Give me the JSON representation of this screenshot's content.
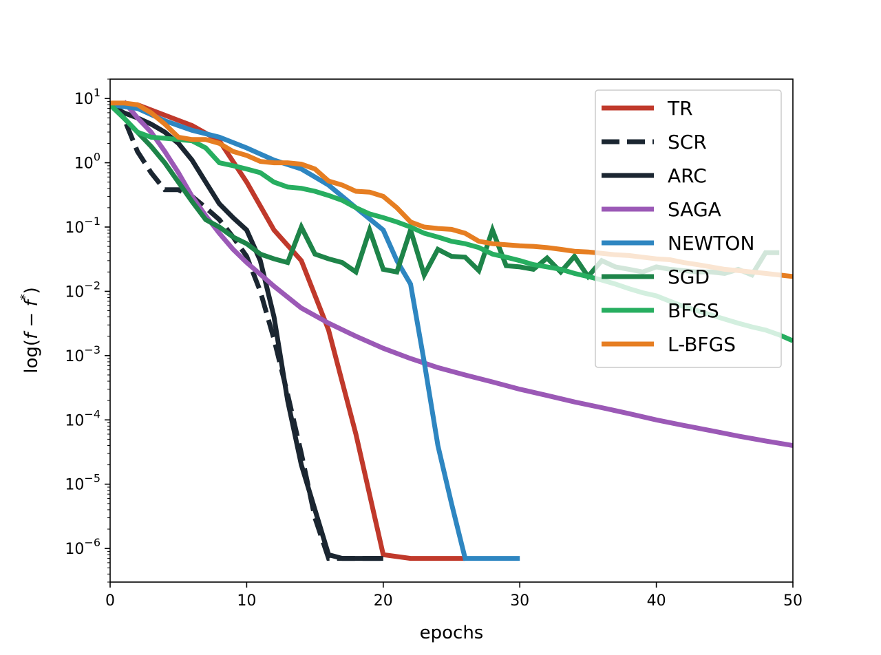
{
  "chart_data": {
    "type": "line",
    "title": "",
    "xlabel": "epochs",
    "ylabel": "log(f − f*)",
    "xlim": [
      0,
      50
    ],
    "ylim": [
      3e-07,
      20
    ],
    "yscale": "log",
    "xticks": [
      "0",
      "10",
      "20",
      "30",
      "40",
      "50"
    ],
    "yticks": [
      {
        "base": "10",
        "exp": "1",
        "value": 10
      },
      {
        "base": "10",
        "exp": "0",
        "value": 1
      },
      {
        "base": "10",
        "exp": "−1",
        "value": 0.1
      },
      {
        "base": "10",
        "exp": "−2",
        "value": 0.01
      },
      {
        "base": "10",
        "exp": "−3",
        "value": 0.001
      },
      {
        "base": "10",
        "exp": "−4",
        "value": 0.0001
      },
      {
        "base": "10",
        "exp": "−5",
        "value": 1e-05
      },
      {
        "base": "10",
        "exp": "−6",
        "value": 1e-06
      }
    ],
    "grid": false,
    "legend_position": "top-right",
    "series": [
      {
        "name": "TR",
        "color": "#c0392b",
        "dash": "solid",
        "x": [
          0,
          2,
          4,
          6,
          8,
          10,
          12,
          14,
          16,
          18,
          20,
          22,
          24,
          26
        ],
        "y": [
          8,
          8,
          5.5,
          3.8,
          2.2,
          0.5,
          0.09,
          0.03,
          0.0025,
          6e-05,
          8e-07,
          7e-07,
          7e-07,
          7e-07
        ]
      },
      {
        "name": "SCR",
        "color": "#1b2631",
        "dash": "dashed",
        "x": [
          0,
          1,
          2,
          3,
          4,
          5,
          6,
          7,
          8,
          9,
          10,
          11,
          12,
          13,
          14,
          15,
          16,
          17,
          18,
          20
        ],
        "y": [
          8,
          5,
          1.5,
          0.7,
          0.38,
          0.38,
          0.3,
          0.2,
          0.13,
          0.07,
          0.035,
          0.01,
          0.0018,
          0.00025,
          3e-05,
          3e-06,
          7e-07,
          7e-07,
          7e-07,
          7e-07
        ]
      },
      {
        "name": "ARC",
        "color": "#1b2631",
        "dash": "solid",
        "x": [
          0,
          1,
          2,
          3,
          4,
          5,
          6,
          7,
          8,
          9,
          10,
          11,
          12,
          13,
          14,
          15,
          16,
          17,
          18,
          19,
          20
        ],
        "y": [
          8,
          6,
          5,
          4,
          3,
          2,
          1.1,
          0.5,
          0.23,
          0.14,
          0.09,
          0.03,
          0.004,
          0.0002,
          2e-05,
          4e-06,
          8e-07,
          7e-07,
          7e-07,
          7e-07,
          7e-07
        ]
      },
      {
        "name": "SAGA",
        "color": "#9b59b6",
        "dash": "solid",
        "x": [
          1,
          2,
          3,
          4,
          5,
          6,
          7,
          8,
          9,
          10,
          12,
          14,
          16,
          18,
          20,
          22,
          24,
          26,
          28,
          30,
          32,
          34,
          36,
          38,
          40,
          42,
          44,
          46,
          48,
          50
        ],
        "y": [
          9,
          5,
          3,
          1.5,
          0.7,
          0.3,
          0.15,
          0.08,
          0.045,
          0.028,
          0.012,
          0.0055,
          0.0032,
          0.002,
          0.0013,
          0.0009,
          0.00065,
          0.0005,
          0.00039,
          0.0003,
          0.00024,
          0.00019,
          0.000155,
          0.000125,
          0.0001,
          8.2e-05,
          6.8e-05,
          5.6e-05,
          4.7e-05,
          4e-05
        ]
      },
      {
        "name": "NEWTON",
        "color": "#2e86c1",
        "dash": "solid",
        "x": [
          0,
          2,
          4,
          6,
          8,
          10,
          12,
          14,
          16,
          18,
          20,
          21,
          22,
          23,
          24,
          25,
          26,
          27,
          28,
          29,
          30
        ],
        "y": [
          8,
          7,
          4.5,
          3.2,
          2.5,
          1.7,
          1.1,
          0.8,
          0.45,
          0.2,
          0.09,
          0.03,
          0.013,
          0.0008,
          4e-05,
          5e-06,
          7e-07,
          7e-07,
          7e-07,
          7e-07,
          7e-07
        ]
      },
      {
        "name": "SGD",
        "color": "#1e8449",
        "dash": "solid",
        "x": [
          0,
          1,
          2,
          3,
          4,
          5,
          6,
          7,
          8,
          9,
          10,
          11,
          12,
          13,
          14,
          15,
          16,
          17,
          18,
          19,
          20,
          21,
          22,
          23,
          24,
          25,
          26,
          27,
          28,
          29,
          30,
          31,
          32,
          33,
          34,
          35,
          36,
          37,
          38,
          39,
          40,
          41,
          42,
          43,
          44,
          45,
          46,
          47,
          48,
          49
        ],
        "y": [
          8,
          5,
          3,
          1.8,
          1,
          0.5,
          0.25,
          0.13,
          0.1,
          0.07,
          0.055,
          0.038,
          0.032,
          0.028,
          0.1,
          0.038,
          0.032,
          0.028,
          0.02,
          0.09,
          0.022,
          0.02,
          0.09,
          0.018,
          0.045,
          0.035,
          0.034,
          0.021,
          0.09,
          0.025,
          0.024,
          0.022,
          0.033,
          0.02,
          0.035,
          0.017,
          0.03,
          0.024,
          0.022,
          0.02,
          0.024,
          0.022,
          0.021,
          0.02,
          0.02,
          0.019,
          0.022,
          0.018,
          0.04,
          0.04
        ]
      },
      {
        "name": "BFGS",
        "color": "#27ae60",
        "dash": "solid",
        "x": [
          0,
          1,
          2,
          3,
          4,
          5,
          6,
          7,
          8,
          9,
          10,
          11,
          12,
          13,
          14,
          15,
          16,
          17,
          18,
          19,
          20,
          21,
          22,
          23,
          24,
          25,
          26,
          27,
          28,
          29,
          30,
          31,
          32,
          33,
          34,
          35,
          36,
          37,
          38,
          39,
          40,
          41,
          42,
          43,
          44,
          45,
          46,
          47,
          48,
          49,
          50
        ],
        "y": [
          8,
          5,
          3,
          2.5,
          2.4,
          2.3,
          2.2,
          1.7,
          1,
          0.9,
          0.8,
          0.7,
          0.5,
          0.42,
          0.4,
          0.36,
          0.31,
          0.26,
          0.2,
          0.16,
          0.14,
          0.12,
          0.1,
          0.08,
          0.07,
          0.06,
          0.055,
          0.048,
          0.038,
          0.034,
          0.03,
          0.026,
          0.024,
          0.022,
          0.019,
          0.017,
          0.015,
          0.013,
          0.011,
          0.0095,
          0.0085,
          0.007,
          0.0058,
          0.005,
          0.0043,
          0.0037,
          0.0032,
          0.0028,
          0.0025,
          0.0021,
          0.0017
        ]
      },
      {
        "name": "L-BFGS",
        "color": "#e67e22",
        "dash": "solid",
        "x": [
          0,
          1,
          2,
          3,
          4,
          5,
          6,
          7,
          8,
          9,
          10,
          11,
          12,
          13,
          14,
          15,
          16,
          17,
          18,
          19,
          20,
          21,
          22,
          23,
          24,
          25,
          26,
          27,
          28,
          29,
          30,
          31,
          32,
          33,
          34,
          35,
          36,
          37,
          38,
          39,
          40,
          41,
          42,
          43,
          44,
          45,
          46,
          47,
          48,
          49,
          50
        ],
        "y": [
          8.5,
          8.5,
          8,
          6,
          4,
          2.5,
          2.3,
          2.3,
          2,
          1.5,
          1.3,
          1.05,
          1,
          1,
          0.95,
          0.8,
          0.52,
          0.45,
          0.36,
          0.35,
          0.3,
          0.2,
          0.12,
          0.1,
          0.095,
          0.092,
          0.08,
          0.06,
          0.055,
          0.053,
          0.051,
          0.05,
          0.048,
          0.045,
          0.042,
          0.041,
          0.039,
          0.037,
          0.036,
          0.034,
          0.032,
          0.031,
          0.028,
          0.026,
          0.024,
          0.022,
          0.021,
          0.02,
          0.019,
          0.018,
          0.017
        ]
      }
    ]
  }
}
